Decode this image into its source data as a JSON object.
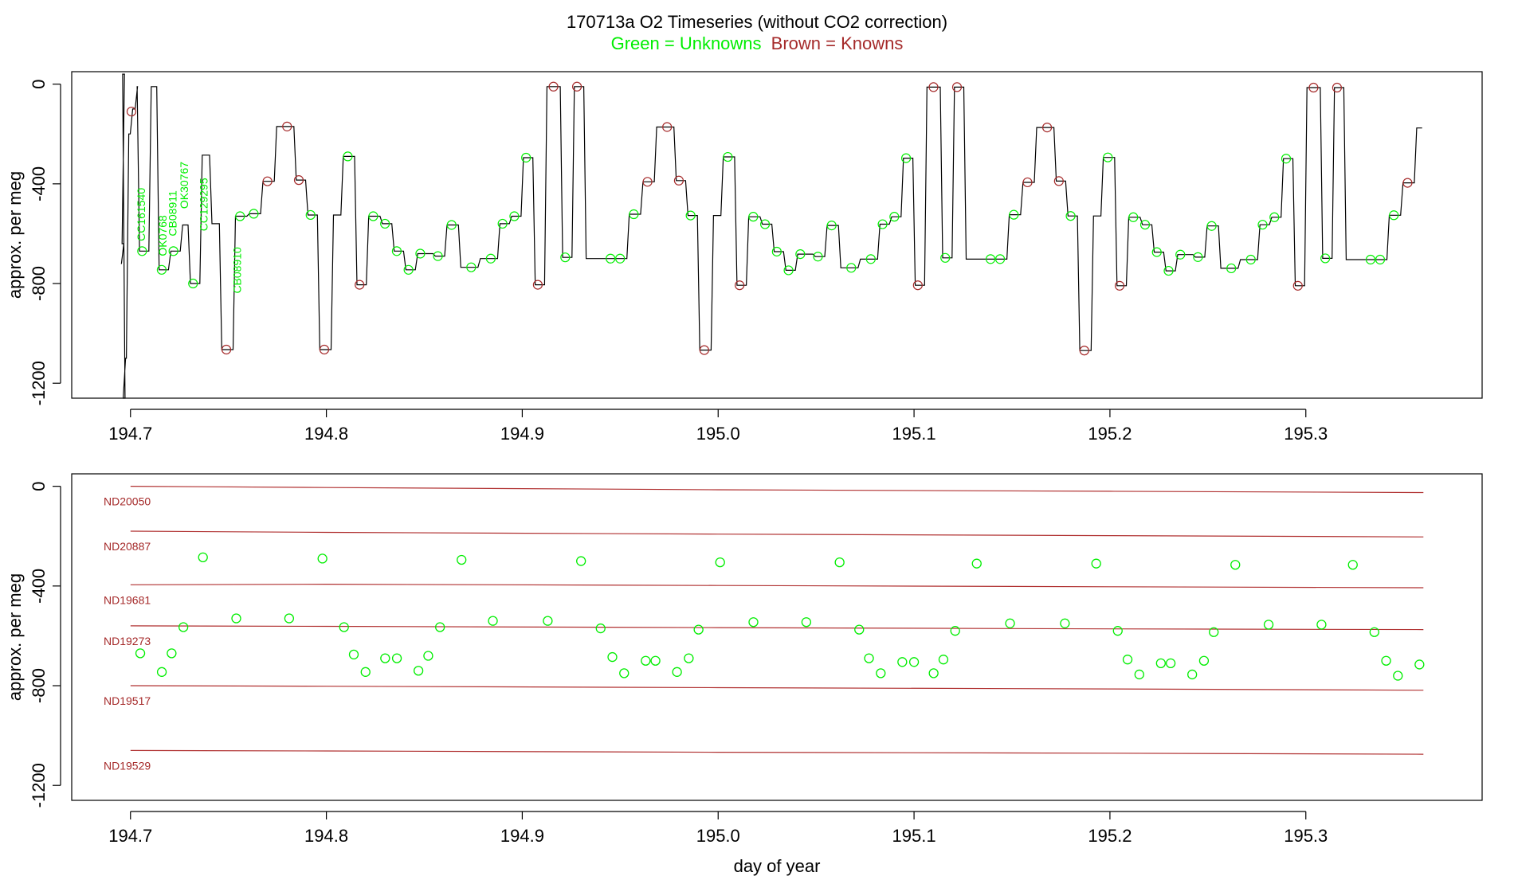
{
  "title": "170713a   O2 Timeseries (without CO2 correction)",
  "subtitle_green": "Green = Unknowns",
  "subtitle_brown": "Brown = Knowns",
  "colors": {
    "unknown": "#00ee00",
    "known": "#a52a2a",
    "trace": "#000000",
    "axis": "#000000",
    "ref_line": "#b03030"
  },
  "chart_data": [
    {
      "type": "line",
      "panel": "top",
      "xlabel": "",
      "ylabel": "approx. per meg",
      "xlim": [
        194.67,
        195.39
      ],
      "ylim": [
        -1260,
        50
      ],
      "xticks": [
        "194.7",
        "194.8",
        "194.9",
        "195.0",
        "195.1",
        "195.2",
        "195.3"
      ],
      "xtick_values": [
        194.7,
        194.8,
        194.9,
        195.0,
        195.1,
        195.2,
        195.3
      ],
      "yticks": [
        "0",
        "-400",
        "-800",
        "-1200"
      ],
      "ytick_values": [
        0,
        -400,
        -800,
        -1200
      ],
      "cycle_start": 194.76,
      "cycle_period": 0.1938,
      "cycle_end": 195.36,
      "cycle_levels": [
        [
          0.0,
          -520
        ],
        [
          0.007,
          -390
        ],
        [
          0.014,
          -170
        ],
        [
          0.024,
          -385
        ],
        [
          0.03,
          -525
        ],
        [
          0.036,
          -1065
        ],
        [
          0.043,
          -525
        ],
        [
          0.048,
          -290
        ],
        [
          0.055,
          -805
        ],
        [
          0.061,
          -530
        ],
        [
          0.068,
          -560
        ],
        [
          0.074,
          -670
        ],
        [
          0.08,
          -745
        ],
        [
          0.086,
          -680
        ],
        [
          0.092,
          -680
        ],
        [
          0.095,
          -690
        ],
        [
          0.101,
          -565
        ],
        [
          0.108,
          -735
        ],
        [
          0.118,
          -700
        ],
        [
          0.121,
          -700
        ],
        [
          0.128,
          -560
        ],
        [
          0.134,
          -530
        ],
        [
          0.14,
          -295
        ],
        [
          0.146,
          -805
        ],
        [
          0.152,
          -10
        ],
        [
          0.16,
          -695
        ],
        [
          0.166,
          -10
        ],
        [
          0.172,
          -700
        ]
      ],
      "unknown_labels": [
        {
          "text": "CC161540",
          "x": 194.705
        },
        {
          "text": "OK0768",
          "x": 194.716
        },
        {
          "text": "CB08911",
          "x": 194.721
        },
        {
          "text": "OK30767",
          "x": 194.727
        },
        {
          "text": "CC129295",
          "x": 194.737
        },
        {
          "text": "CB08910",
          "x": 194.754
        }
      ]
    },
    {
      "type": "scatter",
      "panel": "bottom",
      "xlabel": "day of year",
      "ylabel": "approx. per meg",
      "xlim": [
        194.67,
        195.39
      ],
      "ylim": [
        -1260,
        50
      ],
      "xticks": [
        "194.7",
        "194.8",
        "194.9",
        "195.0",
        "195.1",
        "195.2",
        "195.3"
      ],
      "xtick_values": [
        194.7,
        194.8,
        194.9,
        195.0,
        195.1,
        195.2,
        195.3
      ],
      "yticks": [
        "0",
        "-400",
        "-800",
        "-1200"
      ],
      "ytick_values": [
        0,
        -400,
        -800,
        -1200
      ],
      "reference_lines": [
        {
          "name": "ND20050",
          "x": [
            194.7,
            194.8,
            195.0,
            195.2,
            195.36
          ],
          "y": [
            0,
            -5,
            -14,
            -20,
            -25
          ]
        },
        {
          "name": "ND20887",
          "x": [
            194.7,
            194.8,
            195.0,
            195.2,
            195.36
          ],
          "y": [
            -180,
            -185,
            -192,
            -198,
            -203
          ]
        },
        {
          "name": "ND19681",
          "x": [
            194.7,
            194.8,
            195.0,
            195.2,
            195.36
          ],
          "y": [
            -395,
            -393,
            -398,
            -403,
            -407
          ]
        },
        {
          "name": "ND19273",
          "x": [
            194.7,
            194.8,
            195.0,
            195.2,
            195.36
          ],
          "y": [
            -560,
            -562,
            -567,
            -572,
            -575
          ]
        },
        {
          "name": "ND19517",
          "x": [
            194.7,
            194.8,
            195.0,
            195.2,
            195.36
          ],
          "y": [
            -800,
            -802,
            -808,
            -813,
            -818
          ]
        },
        {
          "name": "ND19529",
          "x": [
            194.7,
            194.8,
            195.0,
            195.2,
            195.36
          ],
          "y": [
            -1060,
            -1062,
            -1067,
            -1071,
            -1075
          ]
        }
      ],
      "unknowns": {
        "x": [
          194.705,
          194.716,
          194.721,
          194.727,
          194.737,
          194.754,
          194.781,
          194.798,
          194.809,
          194.814,
          194.82,
          194.83,
          194.836,
          194.847,
          194.852,
          194.858,
          194.869,
          194.885,
          194.913,
          194.93,
          194.94,
          194.946,
          194.952,
          194.963,
          194.968,
          194.979,
          194.985,
          194.99,
          195.001,
          195.018,
          195.045,
          195.062,
          195.072,
          195.077,
          195.083,
          195.094,
          195.1,
          195.11,
          195.115,
          195.121,
          195.132,
          195.149,
          195.177,
          195.193,
          195.204,
          195.209,
          195.215,
          195.226,
          195.231,
          195.242,
          195.248,
          195.253,
          195.264,
          195.281,
          195.308,
          195.324,
          195.335,
          195.341,
          195.347,
          195.358
        ],
        "y": [
          -670,
          -745,
          -670,
          -565,
          -285,
          -530,
          -530,
          -290,
          -565,
          -675,
          -745,
          -690,
          -690,
          -740,
          -680,
          -565,
          -295,
          -540,
          -540,
          -300,
          -570,
          -685,
          -750,
          -700,
          -700,
          -745,
          -690,
          -575,
          -305,
          -545,
          -545,
          -305,
          -575,
          -690,
          -750,
          -705,
          -705,
          -750,
          -695,
          -580,
          -310,
          -550,
          -550,
          -310,
          -580,
          -695,
          -755,
          -710,
          -710,
          -755,
          -700,
          -585,
          -315,
          -555,
          -555,
          -315,
          -585,
          -700,
          -760,
          -715
        ]
      }
    }
  ]
}
